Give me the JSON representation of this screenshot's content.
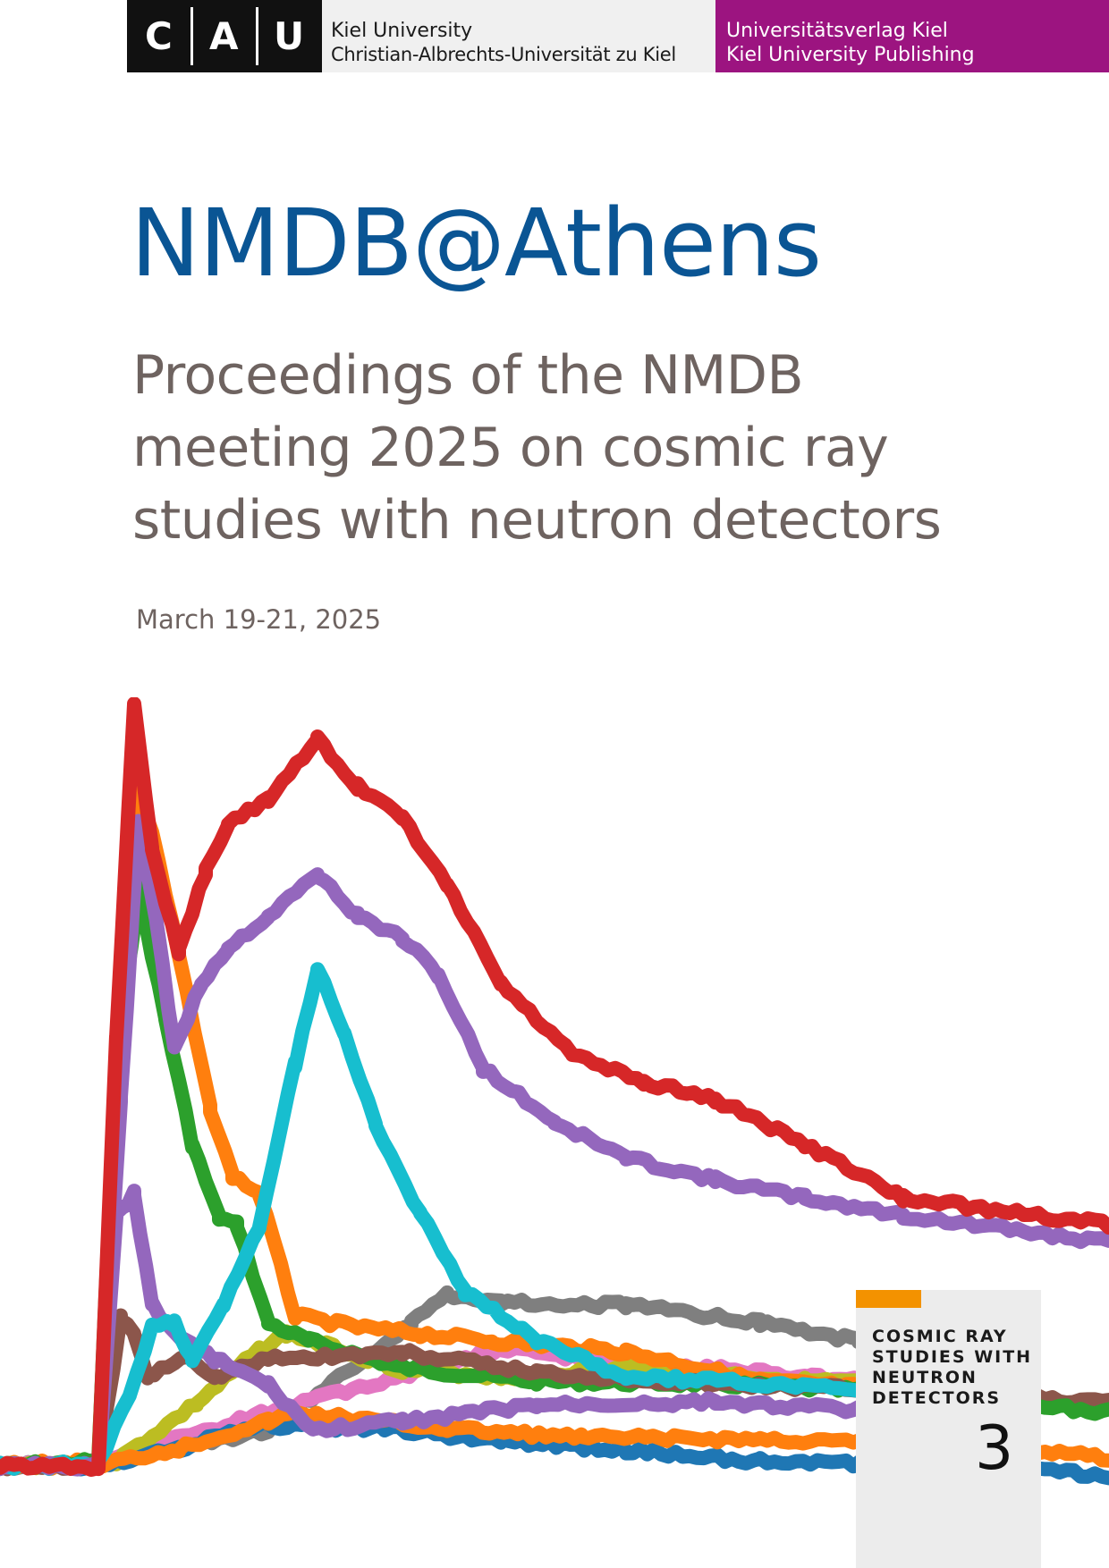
{
  "header": {
    "logo_letters": [
      "C",
      "A",
      "U"
    ],
    "university_line1": "Kiel University",
    "university_line2": "Christian-Albrechts-Universität zu Kiel",
    "publisher_line1": "Universitätsverlag Kiel",
    "publisher_line2": "Kiel University Publishing",
    "colors": {
      "logo_bg": "#111111",
      "university_bg": "#f0f0f0",
      "publisher_bg": "#9c1480"
    }
  },
  "title": "NMDB@Athens",
  "subtitle_lines": [
    "Proceedings of the NMDB",
    "meeting 2025 on cosmic ray",
    "studies with neutron detectors"
  ],
  "date": "March 19-21, 2025",
  "series": {
    "name_lines": [
      "COSMIC RAY",
      "STUDIES WITH",
      "NEUTRON",
      "DETECTORS"
    ],
    "number": "3",
    "accent_color": "#f39200"
  },
  "cover_graphic": {
    "description_icon": "cosmic-ray-count-curves",
    "colors": [
      "#d62728",
      "#ff7f0e",
      "#2ca02c",
      "#9467bd",
      "#17becf",
      "#1f77b4",
      "#8c564b",
      "#bcbd22",
      "#7f7f7f",
      "#e377c2"
    ]
  }
}
